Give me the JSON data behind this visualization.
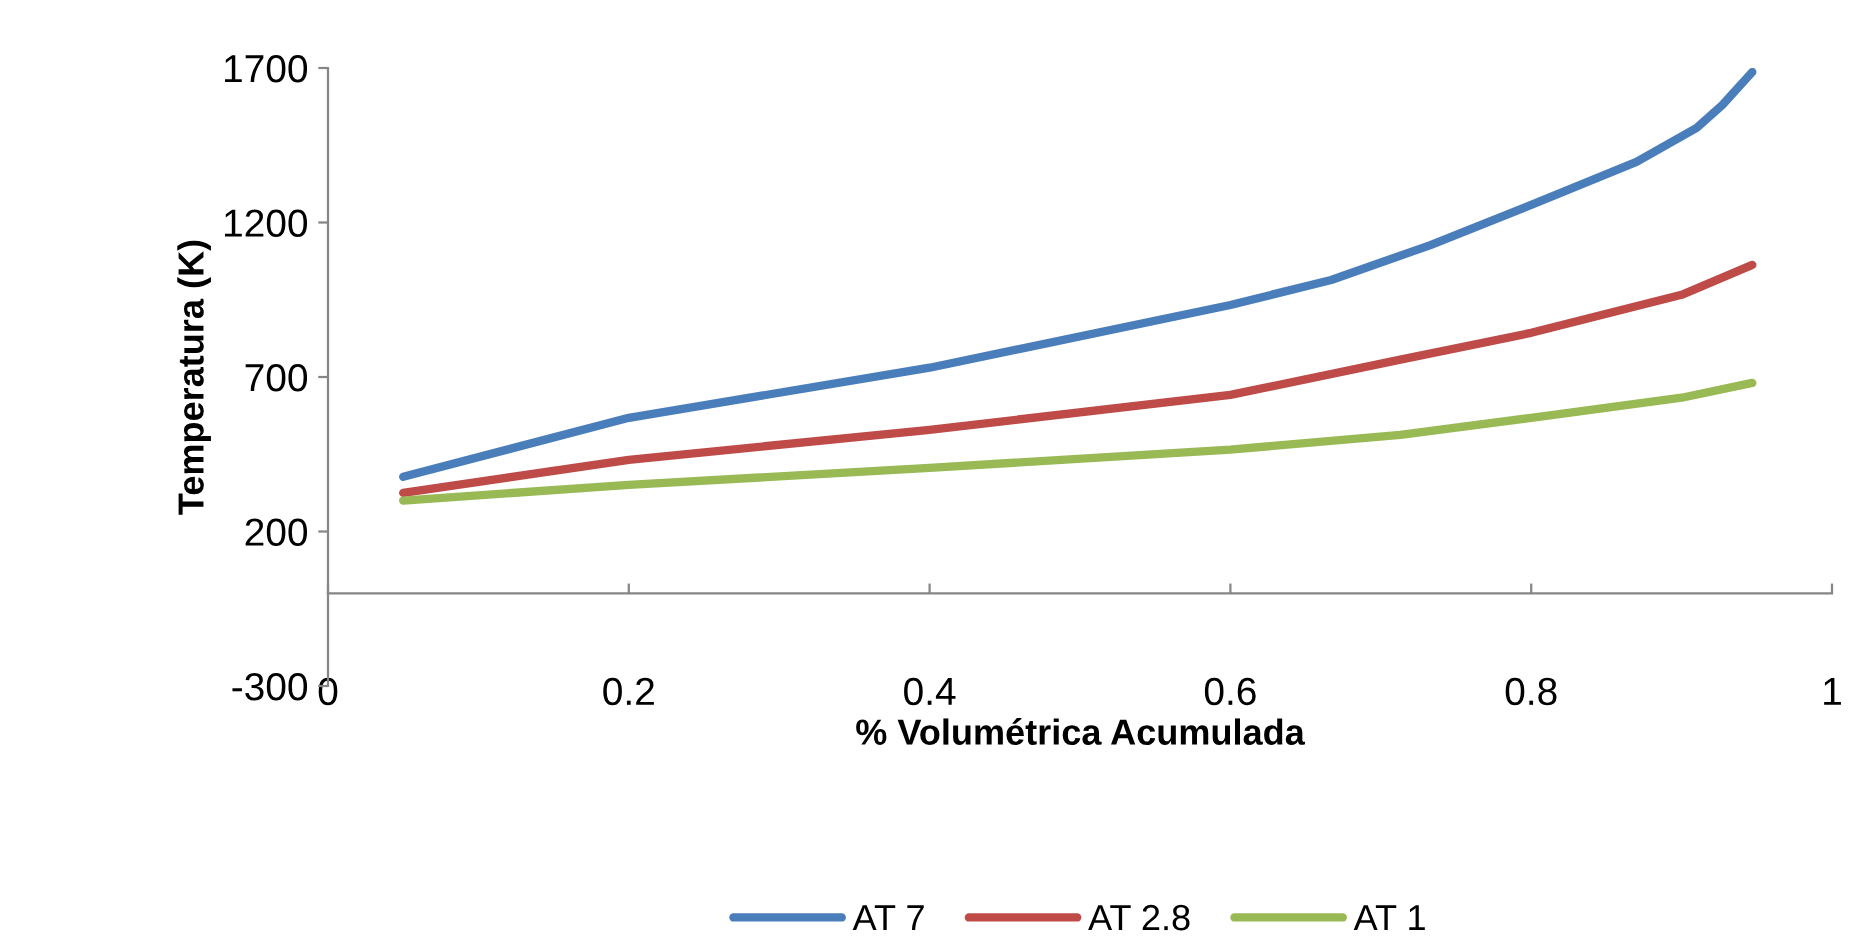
{
  "chart_data": {
    "type": "line",
    "xlabel": "% Volumétrica Acumulada",
    "ylabel": "Temperatura (K)",
    "series": [
      {
        "name": "AT 7",
        "color": "#4a7ebb",
        "x": [
          0.05,
          0.2,
          0.4,
          0.6,
          0.667,
          0.733,
          0.8,
          0.87,
          0.91,
          0.927,
          0.947
        ],
        "values": [
          377,
          568,
          730,
          933,
          1014,
          1127,
          1257,
          1396,
          1506,
          1580,
          1687
        ]
      },
      {
        "name": "AT 2.8",
        "color": "#be4b48",
        "x": [
          0.05,
          0.2,
          0.4,
          0.6,
          0.713,
          0.8,
          0.9,
          0.947
        ],
        "values": [
          325,
          432,
          529,
          642,
          756,
          843,
          966,
          1063
        ]
      },
      {
        "name": "AT 1",
        "color": "#98b954",
        "x": [
          0.05,
          0.2,
          0.4,
          0.6,
          0.713,
          0.8,
          0.9,
          0.947
        ],
        "values": [
          300,
          351,
          406,
          465,
          513,
          568,
          633,
          681
        ]
      }
    ],
    "xlim": [
      0,
      1
    ],
    "xticks": [
      0,
      0.2,
      0.4,
      0.6,
      0.8,
      1
    ],
    "ylim": [
      -300,
      1700
    ],
    "yticks": [
      -300,
      200,
      700,
      1200,
      1700
    ],
    "grid": false,
    "legend": "bottom",
    "marker": "none",
    "line_style": "solid"
  }
}
